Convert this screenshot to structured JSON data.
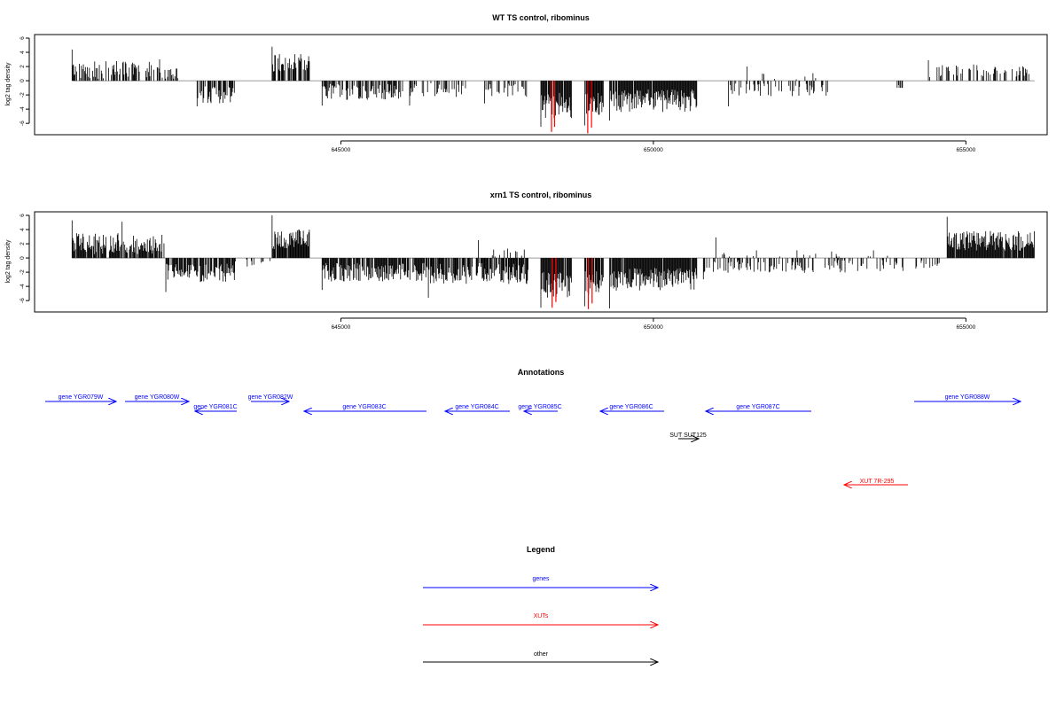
{
  "colors": {
    "bar": "#000000",
    "highlight": "#ff0000",
    "gene": "#0000ff",
    "xut": "#ff0000",
    "other": "#000000",
    "baseline": "#9a9a9a"
  },
  "chart_data": [
    {
      "type": "bar",
      "title": "WT TS control, ribominus",
      "ylabel": "log2 tag density",
      "xlim": [
        640100,
        656300
      ],
      "ylim": [
        -7.6,
        6.5
      ],
      "yticks": [
        -6,
        -4,
        -2,
        0,
        2,
        4,
        6
      ],
      "xticks": [
        645000,
        650000,
        655000
      ],
      "xtick_labels": [
        "645000",
        "650000",
        "655000"
      ],
      "grid": false,
      "segments": [
        {
          "start": 640700,
          "end": 642100,
          "sign": 1,
          "mean": 1.5,
          "spread": 1.3,
          "peak": 4.4,
          "density": 0.55
        },
        {
          "start": 642100,
          "end": 642400,
          "sign": 1,
          "mean": 1.0,
          "spread": 0.8,
          "peak": 3.0,
          "density": 0.35
        },
        {
          "start": 642700,
          "end": 643300,
          "sign": -1,
          "mean": 2.0,
          "spread": 1.2,
          "peak": 3.6,
          "density": 0.6
        },
        {
          "start": 643900,
          "end": 644500,
          "sign": 1,
          "mean": 2.5,
          "spread": 1.3,
          "peak": 4.8,
          "density": 0.8
        },
        {
          "start": 644700,
          "end": 646000,
          "sign": -1,
          "mean": 1.5,
          "spread": 1.2,
          "peak": 3.5,
          "density": 0.6
        },
        {
          "start": 646100,
          "end": 647000,
          "sign": -1,
          "mean": 1.3,
          "spread": 1.0,
          "peak": 3.5,
          "density": 0.35
        },
        {
          "start": 647300,
          "end": 648000,
          "sign": -1,
          "mean": 1.3,
          "spread": 1.0,
          "peak": 3.2,
          "density": 0.4
        },
        {
          "start": 648200,
          "end": 648700,
          "sign": -1,
          "mean": 3.5,
          "spread": 1.8,
          "peak": 6.5,
          "density": 0.9
        },
        {
          "start": 648900,
          "end": 649200,
          "sign": -1,
          "mean": 3.5,
          "spread": 1.8,
          "peak": 6.3,
          "density": 0.9
        },
        {
          "start": 649300,
          "end": 650700,
          "sign": -1,
          "mean": 2.8,
          "spread": 1.6,
          "peak": 5.6,
          "density": 0.95
        },
        {
          "start": 651200,
          "end": 652800,
          "sign": -1,
          "mean": 1.3,
          "spread": 0.9,
          "peak": 3.6,
          "density": 0.3
        },
        {
          "start": 651500,
          "end": 652600,
          "sign": 1,
          "mean": 0.6,
          "spread": 0.5,
          "peak": 2.0,
          "density": 0.06
        },
        {
          "start": 653900,
          "end": 654000,
          "sign": -1,
          "mean": 1.0,
          "spread": 0.5,
          "peak": 1.0,
          "density": 0.5
        },
        {
          "start": 654400,
          "end": 656100,
          "sign": 1,
          "mean": 1.4,
          "spread": 0.9,
          "peak": 2.9,
          "density": 0.3
        }
      ],
      "highlights": [
        {
          "x": 648370,
          "value": -7.2
        },
        {
          "x": 648420,
          "value": -6.5
        },
        {
          "x": 648950,
          "value": -7.4
        },
        {
          "x": 649010,
          "value": -6.6
        }
      ]
    },
    {
      "type": "bar",
      "title": "xrn1 TS control, ribominus",
      "ylabel": "log2 tag density",
      "xlim": [
        640100,
        656300
      ],
      "ylim": [
        -7.6,
        6.5
      ],
      "yticks": [
        -6,
        -4,
        -2,
        0,
        2,
        4,
        6
      ],
      "xticks": [
        645000,
        650000,
        655000
      ],
      "xtick_labels": [
        "645000",
        "650000",
        "655000"
      ],
      "grid": false,
      "segments": [
        {
          "start": 640700,
          "end": 641500,
          "sign": 1,
          "mean": 2.0,
          "spread": 1.5,
          "peak": 5.3,
          "density": 0.85
        },
        {
          "start": 641500,
          "end": 642200,
          "sign": 1,
          "mean": 1.9,
          "spread": 1.4,
          "peak": 5.1,
          "density": 0.7
        },
        {
          "start": 642200,
          "end": 643300,
          "sign": -1,
          "mean": 2.1,
          "spread": 1.3,
          "peak": 4.8,
          "density": 0.75
        },
        {
          "start": 643300,
          "end": 643900,
          "sign": -1,
          "mean": 0.8,
          "spread": 0.6,
          "peak": 2.0,
          "density": 0.15
        },
        {
          "start": 643900,
          "end": 644500,
          "sign": 1,
          "mean": 2.6,
          "spread": 1.4,
          "peak": 6.0,
          "density": 0.9
        },
        {
          "start": 644700,
          "end": 646400,
          "sign": -1,
          "mean": 2.0,
          "spread": 1.3,
          "peak": 4.5,
          "density": 0.85
        },
        {
          "start": 646400,
          "end": 648000,
          "sign": -1,
          "mean": 2.2,
          "spread": 1.5,
          "peak": 5.6,
          "density": 0.8
        },
        {
          "start": 647200,
          "end": 648000,
          "sign": 1,
          "mean": 0.8,
          "spread": 0.6,
          "peak": 2.5,
          "density": 0.1
        },
        {
          "start": 648200,
          "end": 648700,
          "sign": -1,
          "mean": 3.8,
          "spread": 1.8,
          "peak": 7.0,
          "density": 0.95
        },
        {
          "start": 648900,
          "end": 649200,
          "sign": -1,
          "mean": 3.6,
          "spread": 1.8,
          "peak": 6.8,
          "density": 0.95
        },
        {
          "start": 649300,
          "end": 650700,
          "sign": -1,
          "mean": 3.0,
          "spread": 1.6,
          "peak": 7.1,
          "density": 0.98
        },
        {
          "start": 650800,
          "end": 654000,
          "sign": -1,
          "mean": 1.2,
          "spread": 0.9,
          "peak": 3.0,
          "density": 0.3
        },
        {
          "start": 651000,
          "end": 653800,
          "sign": 1,
          "mean": 0.6,
          "spread": 0.5,
          "peak": 2.9,
          "density": 0.06
        },
        {
          "start": 654200,
          "end": 654600,
          "sign": -1,
          "mean": 0.8,
          "spread": 0.6,
          "peak": 1.5,
          "density": 0.4
        },
        {
          "start": 654700,
          "end": 656100,
          "sign": 1,
          "mean": 2.4,
          "spread": 1.4,
          "peak": 5.8,
          "density": 0.95
        }
      ],
      "highlights": [
        {
          "x": 648380,
          "value": -7.0
        },
        {
          "x": 648440,
          "value": -6.2
        },
        {
          "x": 648960,
          "value": -7.2
        },
        {
          "x": 649020,
          "value": -6.4
        }
      ]
    }
  ],
  "annotations": {
    "title": "Annotations",
    "genes": [
      {
        "label": "gene YGR079W",
        "strand": "+"
      },
      {
        "label": "gene YGR080W",
        "strand": "+"
      },
      {
        "label": "gene YGR081C",
        "strand": "-"
      },
      {
        "label": "gene YGR082W",
        "strand": "+"
      },
      {
        "label": "gene YGR083C",
        "strand": "-"
      },
      {
        "label": "gene YGR084C",
        "strand": "-"
      },
      {
        "label": "gene YGR085C",
        "strand": "-"
      },
      {
        "label": "gene YGR086C",
        "strand": "-"
      },
      {
        "label": "gene YGR087C",
        "strand": "-"
      },
      {
        "label": "gene YGR088W",
        "strand": "+"
      }
    ],
    "other": [
      {
        "label": "SUT SUT125",
        "strand": "+"
      }
    ],
    "xuts": [
      {
        "label": "XUT 7R-295",
        "strand": "-"
      }
    ]
  },
  "legend": {
    "title": "Legend",
    "items": [
      {
        "label": "genes",
        "color": "#0000ff"
      },
      {
        "label": "XUTs",
        "color": "#ff0000"
      },
      {
        "label": "other",
        "color": "#000000"
      }
    ]
  }
}
